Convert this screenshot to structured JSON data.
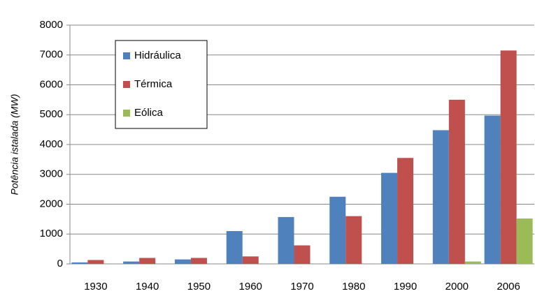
{
  "chart_data": {
    "type": "bar",
    "y_label": "Potência istalada (MW)",
    "categories": [
      "1930",
      "1940",
      "1950",
      "1960",
      "1970",
      "1980",
      "1990",
      "2000",
      "2006"
    ],
    "series": [
      {
        "name": "Hidráulica",
        "color": "#4f81bd",
        "values": [
          50,
          80,
          150,
          1100,
          1570,
          2250,
          3050,
          4480,
          4970
        ]
      },
      {
        "name": "Térmica",
        "color": "#c0504d",
        "values": [
          130,
          200,
          200,
          250,
          620,
          1600,
          3550,
          5500,
          7150
        ]
      },
      {
        "name": "Eólica",
        "color": "#9bbb59",
        "values": [
          0,
          0,
          0,
          0,
          0,
          0,
          0,
          80,
          1520
        ]
      }
    ],
    "ylim": [
      0,
      8000
    ],
    "yticks": [
      0,
      1000,
      2000,
      3000,
      4000,
      5000,
      6000,
      7000,
      8000
    ],
    "grid": true
  }
}
